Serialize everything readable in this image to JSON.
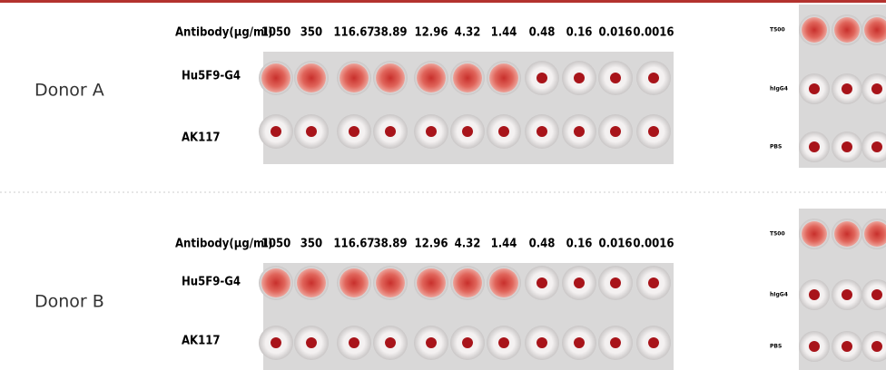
{
  "panels": [
    {
      "donor": "Donor A",
      "header": "Antibody(μg/ml)",
      "concentrations": [
        "1050",
        "350",
        "116.67",
        "38.89",
        "12.96",
        "4.32",
        "1.44",
        "0.48",
        "0.16",
        "0.016",
        "0.0016"
      ],
      "rows": [
        "Hu5F9-G4",
        "AK117"
      ],
      "controls": [
        "T500",
        "hIgG4",
        "PBS"
      ]
    },
    {
      "donor": "Donor B",
      "header": "Antibody(μg/ml)",
      "concentrations": [
        "1050",
        "350",
        "116.67",
        "38.89",
        "12.96",
        "4.32",
        "1.44",
        "0.48",
        "0.16",
        "0.016",
        "0.0016"
      ],
      "rows": [
        "Hu5F9-G4",
        "AK117"
      ],
      "controls": [
        "T500",
        "hIgG4",
        "PBS"
      ]
    }
  ]
}
